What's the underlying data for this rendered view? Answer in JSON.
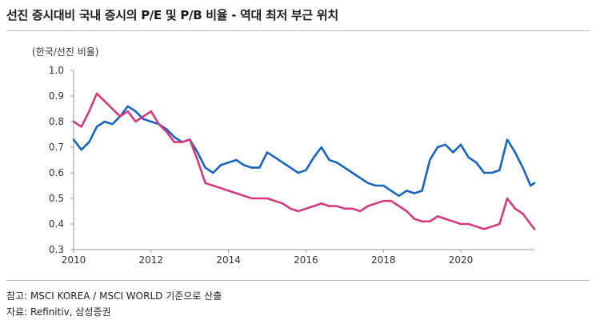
{
  "header": {
    "title": "선진 증시대비 국내 증시의 P/E 및 P/B 비율 - 역대 최저 부근 위치"
  },
  "footer": {
    "source_note": "참고: MSCI KOREA / MSCI WORLD 기준으로 산출",
    "data_source": "자료: Refinitiv, 삼성증권"
  },
  "colors": {
    "pe_line": "#1565c0",
    "pb_line": "#d63a7e",
    "axis": "#999999"
  },
  "chart_data": {
    "type": "line",
    "title": "선진 증시대비 국내 증시의 P/E 및 P/B 비율 - 역대 최저 부근 위치",
    "ylabel": "(한국/선진 비율)",
    "xlabel": "",
    "xlim": [
      2010,
      2021.9
    ],
    "ylim": [
      0.3,
      1.0
    ],
    "x_ticks": [
      "2010",
      "2012",
      "2014",
      "2016",
      "2018",
      "2020"
    ],
    "y_ticks": [
      "1.0",
      "0.9",
      "0.8",
      "0.7",
      "0.6",
      "0.5",
      "0.4",
      "0.3"
    ],
    "grid": false,
    "legend": "none",
    "series": [
      {
        "x": [
          2010.0,
          2010.2,
          2010.4,
          2010.6,
          2010.8,
          2011.0,
          2011.2,
          2011.4,
          2011.6,
          2011.8,
          2012.0,
          2012.2,
          2012.4,
          2012.6,
          2012.8,
          2013.0,
          2013.2,
          2013.4,
          2013.6,
          2013.8,
          2014.0,
          2014.2,
          2014.4,
          2014.6,
          2014.8,
          2015.0,
          2015.2,
          2015.4,
          2015.6,
          2015.8,
          2016.0,
          2016.2,
          2016.4,
          2016.6,
          2016.8,
          2017.0,
          2017.2,
          2017.4,
          2017.6,
          2017.8,
          2018.0,
          2018.2,
          2018.4,
          2018.6,
          2018.8,
          2019.0,
          2019.2,
          2019.4,
          2019.6,
          2019.8,
          2020.0,
          2020.2,
          2020.4,
          2020.6,
          2020.8,
          2021.0,
          2021.2,
          2021.4,
          2021.6,
          2021.8,
          2021.9
        ],
        "values": [
          0.73,
          0.69,
          0.72,
          0.78,
          0.8,
          0.79,
          0.82,
          0.86,
          0.84,
          0.81,
          0.8,
          0.79,
          0.77,
          0.74,
          0.72,
          0.73,
          0.68,
          0.62,
          0.6,
          0.63,
          0.64,
          0.65,
          0.63,
          0.62,
          0.62,
          0.68,
          0.66,
          0.64,
          0.62,
          0.6,
          0.61,
          0.66,
          0.7,
          0.65,
          0.64,
          0.62,
          0.6,
          0.58,
          0.56,
          0.55,
          0.55,
          0.53,
          0.51,
          0.53,
          0.52,
          0.53,
          0.65,
          0.7,
          0.71,
          0.68,
          0.71,
          0.66,
          0.64,
          0.6,
          0.6,
          0.61,
          0.73,
          0.68,
          0.62,
          0.55,
          0.56
        ]
      },
      {
        "x": [
          2010.0,
          2010.2,
          2010.4,
          2010.6,
          2010.8,
          2011.0,
          2011.2,
          2011.4,
          2011.6,
          2011.8,
          2012.0,
          2012.2,
          2012.4,
          2012.6,
          2012.8,
          2013.0,
          2013.2,
          2013.4,
          2013.6,
          2013.8,
          2014.0,
          2014.2,
          2014.4,
          2014.6,
          2014.8,
          2015.0,
          2015.2,
          2015.4,
          2015.6,
          2015.8,
          2016.0,
          2016.2,
          2016.4,
          2016.6,
          2016.8,
          2017.0,
          2017.2,
          2017.4,
          2017.6,
          2017.8,
          2018.0,
          2018.2,
          2018.4,
          2018.6,
          2018.8,
          2019.0,
          2019.2,
          2019.4,
          2019.6,
          2019.8,
          2020.0,
          2020.2,
          2020.4,
          2020.6,
          2020.8,
          2021.0,
          2021.2,
          2021.4,
          2021.6,
          2021.8,
          2021.9
        ],
        "values": [
          0.8,
          0.78,
          0.84,
          0.91,
          0.88,
          0.85,
          0.82,
          0.84,
          0.8,
          0.82,
          0.84,
          0.79,
          0.76,
          0.72,
          0.72,
          0.73,
          0.65,
          0.56,
          0.55,
          0.54,
          0.53,
          0.52,
          0.51,
          0.5,
          0.5,
          0.5,
          0.49,
          0.48,
          0.46,
          0.45,
          0.46,
          0.47,
          0.48,
          0.47,
          0.47,
          0.46,
          0.46,
          0.45,
          0.47,
          0.48,
          0.49,
          0.49,
          0.47,
          0.45,
          0.42,
          0.41,
          0.41,
          0.43,
          0.42,
          0.41,
          0.4,
          0.4,
          0.39,
          0.38,
          0.39,
          0.4,
          0.5,
          0.46,
          0.44,
          0.4,
          0.38
        ]
      }
    ]
  }
}
